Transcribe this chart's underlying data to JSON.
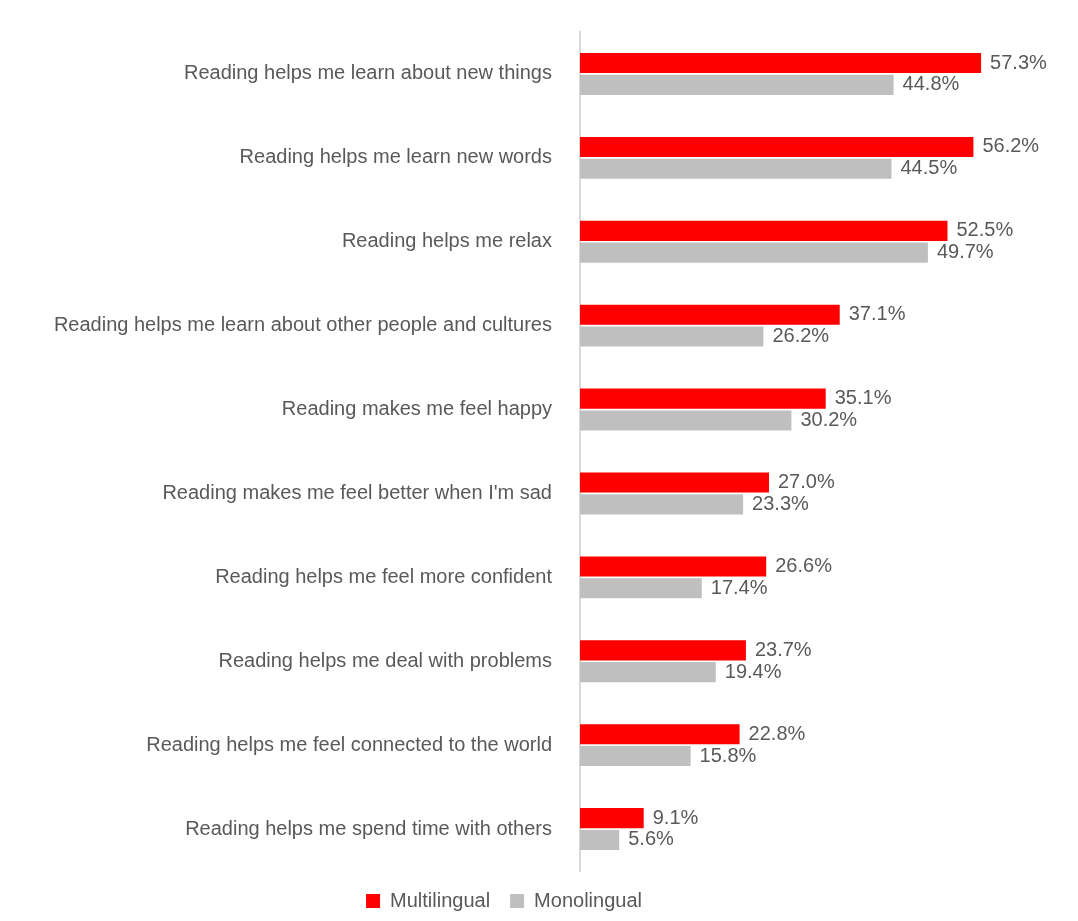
{
  "chart_data": {
    "type": "bar",
    "orientation": "horizontal",
    "categories": [
      "Reading helps me learn about new things",
      "Reading helps me learn new words",
      "Reading helps me relax",
      "Reading helps me learn about other people and cultures",
      "Reading makes me feel happy",
      "Reading makes me feel better when I'm sad",
      "Reading helps me feel more confident",
      "Reading helps me deal with problems",
      "Reading helps me feel connected to the world",
      "Reading helps me spend time with others"
    ],
    "series": [
      {
        "name": "Multilingual",
        "color": "#ff0000",
        "values": [
          57.3,
          56.2,
          52.5,
          37.1,
          35.1,
          27.0,
          26.6,
          23.7,
          22.8,
          9.1
        ],
        "value_labels": [
          "57.3%",
          "56.2%",
          "52.5%",
          "37.1%",
          "35.1%",
          "27.0%",
          "26.6%",
          "23.7%",
          "22.8%",
          "9.1%"
        ]
      },
      {
        "name": "Monolingual",
        "color": "#bfbfbf",
        "values": [
          44.8,
          44.5,
          49.7,
          26.2,
          30.2,
          23.3,
          17.4,
          19.4,
          15.8,
          5.6
        ],
        "value_labels": [
          "44.8%",
          "44.5%",
          "49.7%",
          "26.2%",
          "30.2%",
          "23.3%",
          "17.4%",
          "19.4%",
          "15.8%",
          "5.6%"
        ]
      }
    ],
    "legend": "bottom",
    "tick_labels": "y"
  }
}
